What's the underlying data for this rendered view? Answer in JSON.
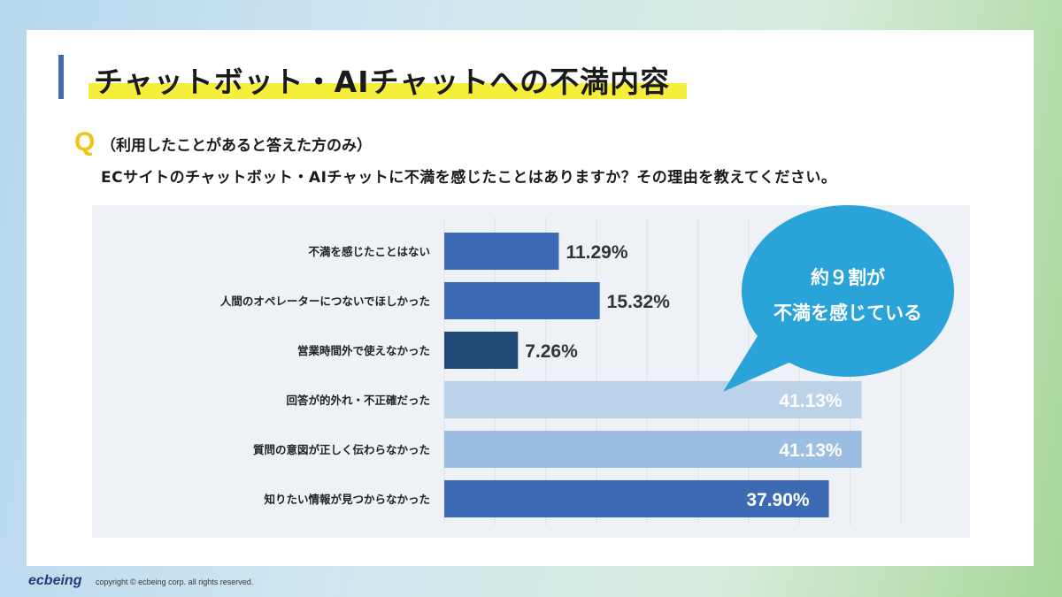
{
  "header": {
    "title": "チャットボット・AIチャットへの不満内容"
  },
  "question": {
    "mark": "Q",
    "line1": "（利用したことがあると答えた方のみ）",
    "line2": "ECサイトのチャットボット・AIチャットに不満を感じたことはありますか？その理由を教えてください。"
  },
  "callout": {
    "line1": "約９割が",
    "line2": "不満を感じている",
    "color": "#2aa3d9"
  },
  "footer": {
    "logo": "ecbeing",
    "copyright": "copyright © ecbeing corp. all rights reserved."
  },
  "chart_data": {
    "type": "bar",
    "orientation": "horizontal",
    "categories": [
      "不満を感じたことはない",
      "人間のオペレーターにつないでほしかった",
      "営業時間外で使えなかった",
      "回答が的外れ・不正確だった",
      "質問の意図が正しく伝わらなかった",
      "知りたい情報が見つからなかった"
    ],
    "values": [
      11.29,
      15.32,
      7.26,
      41.13,
      41.13,
      37.9
    ],
    "labels": [
      "11.29%",
      "15.32%",
      "7.26%",
      "41.13%",
      "41.13%",
      "37.90%"
    ],
    "colors": [
      "#3d6bb3",
      "#3d6bb3",
      "#1f4a75",
      "#bcd2e9",
      "#9cbee2",
      "#3d6bb3"
    ],
    "label_inside": [
      false,
      false,
      false,
      true,
      true,
      true
    ],
    "xlim": [
      0,
      45
    ],
    "grid": true
  }
}
